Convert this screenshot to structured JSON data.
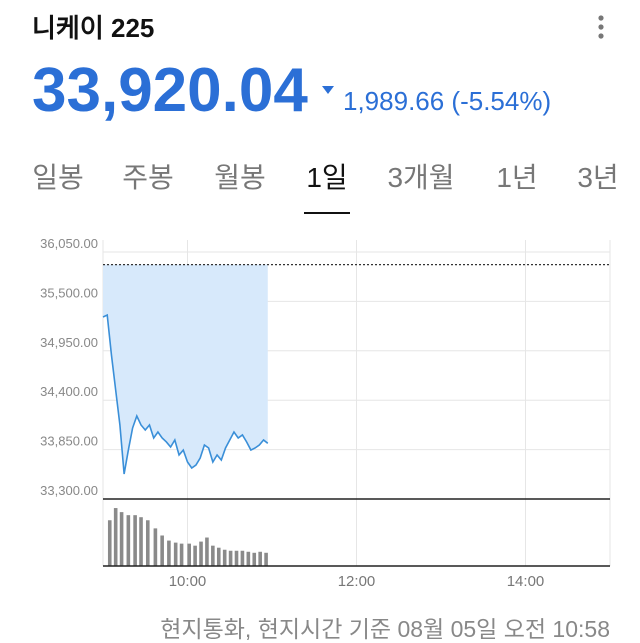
{
  "header": {
    "title": "니케이 225",
    "price": "33,920.04",
    "change": "1,989.66 (-5.54%)"
  },
  "tabs": [
    "일봉",
    "주봉",
    "월봉",
    "1일",
    "3개월",
    "1년",
    "3년"
  ],
  "selected_tab": 3,
  "footer": "현지통화, 현지시간 기준 08월 05일 오전 10:58",
  "chart_data": [
    {
      "type": "line",
      "x": [
        9,
        9.05,
        9.1,
        9.15,
        9.2,
        9.25,
        9.3,
        9.35,
        9.4,
        9.45,
        9.5,
        9.55,
        9.6,
        9.65,
        9.7,
        9.75,
        9.8,
        9.85,
        9.9,
        9.95,
        10,
        10.05,
        10.1,
        10.15,
        10.2,
        10.25,
        10.3,
        10.35,
        10.4,
        10.45,
        10.5,
        10.55,
        10.6,
        10.65,
        10.7,
        10.75,
        10.8,
        10.85,
        10.9,
        10.95
      ],
      "series": [
        {
          "color": "#3a8fd8",
          "values": [
            35326,
            35348,
            34903,
            34513,
            34124,
            33578,
            33845,
            34090,
            34224,
            34124,
            34068,
            34124,
            33979,
            34046,
            33979,
            33935,
            33879,
            33957,
            33790,
            33845,
            33712,
            33645,
            33678,
            33756,
            33901,
            33868,
            33712,
            33790,
            33734,
            33868,
            33957,
            34046,
            33979,
            34013,
            33935,
            33845,
            33868,
            33901,
            33957,
            33920.04
          ]
        }
      ],
      "area_color": "#d7e9fb",
      "reference_line": 35909.7,
      "xlim": [
        9,
        15
      ],
      "ylim": [
        33300,
        36050
      ],
      "yticks": [
        {
          "value": 36050,
          "label": "36,050.00"
        },
        {
          "value": 35500,
          "label": "35,500.00"
        },
        {
          "value": 34950,
          "label": "34,950.00"
        },
        {
          "value": 34400,
          "label": "34,400.00"
        },
        {
          "value": 33850,
          "label": "33,850.00"
        },
        {
          "value": 33300,
          "label": "33,300.00"
        }
      ],
      "xticks": [
        {
          "value": 10,
          "label": "10:00"
        },
        {
          "value": 12,
          "label": "12:00"
        },
        {
          "value": 14,
          "label": "14:00"
        }
      ],
      "grid": true
    },
    {
      "type": "bar",
      "x": [
        9.08,
        9.15,
        9.22,
        9.3,
        9.38,
        9.45,
        9.53,
        9.62,
        9.7,
        9.78,
        9.86,
        9.93,
        10.02,
        10.09,
        10.16,
        10.23,
        10.3,
        10.37,
        10.44,
        10.51,
        10.58,
        10.65,
        10.72,
        10.79,
        10.86,
        10.93
      ],
      "values": [
        45,
        57,
        53,
        50,
        50,
        48,
        45,
        37,
        30,
        25,
        23,
        22,
        22,
        20,
        24,
        28,
        20,
        18,
        16,
        15,
        15,
        15,
        14,
        13,
        14,
        13
      ],
      "color": "#8a8a8a",
      "xlim": [
        9,
        15
      ],
      "ylim": [
        0,
        60
      ]
    }
  ]
}
